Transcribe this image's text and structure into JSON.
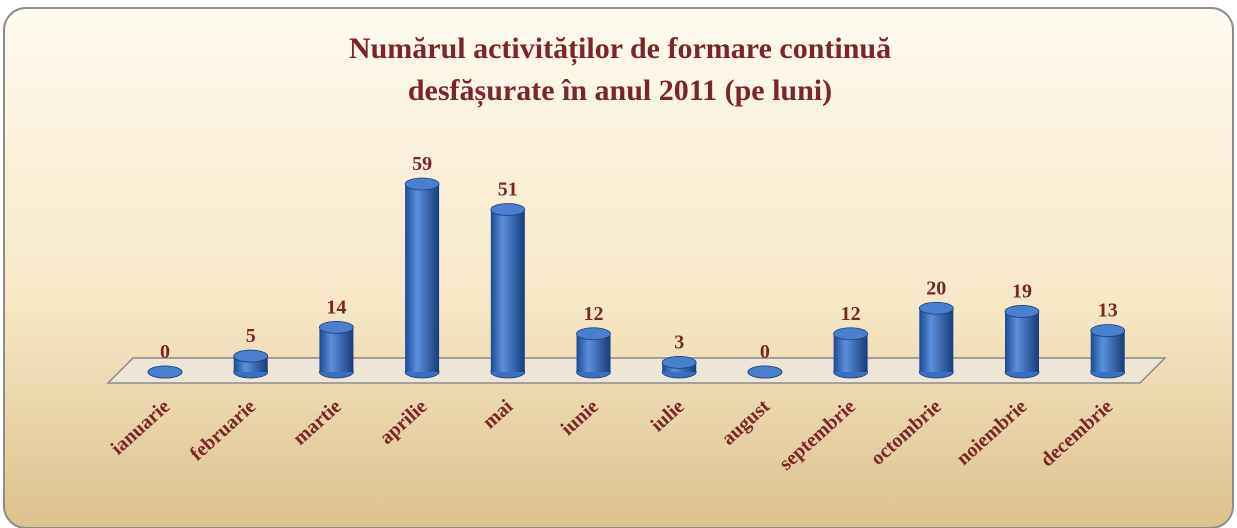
{
  "chart_data": {
    "type": "bar",
    "title": [
      "Numărul activităților de formare continuă",
      "desfășurate în anul 2011 (pe luni)"
    ],
    "categories": [
      "ianuarie",
      "februarie",
      "martie",
      "aprilie",
      "mai",
      "iunie",
      "iulie",
      "august",
      "septembrie",
      "octombrie",
      "noiembrie",
      "decembrie"
    ],
    "values": [
      0,
      5,
      14,
      59,
      51,
      12,
      3,
      0,
      12,
      20,
      19,
      13
    ],
    "color": "#3b6fc0"
  }
}
